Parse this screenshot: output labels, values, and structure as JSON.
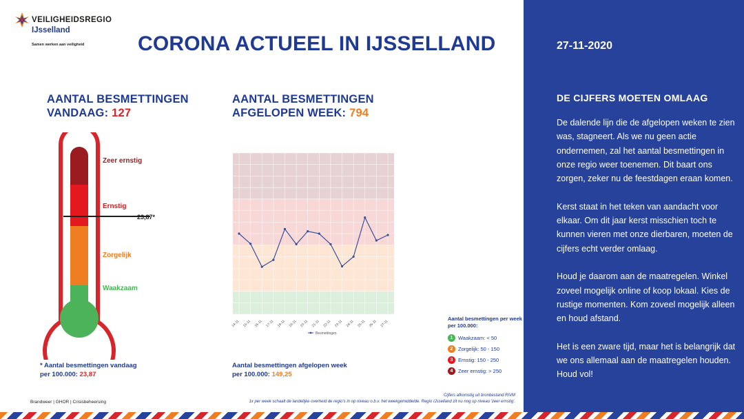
{
  "logo": {
    "line1": "VEILIGHEIDSREGIO",
    "line2": "IJsselland",
    "tagline": "Samen werken aan veiligheid"
  },
  "title": "CORONA ACTUEEL IN IJSSELLAND",
  "today": {
    "label_line1": "AANTAL BESMETTINGEN",
    "label_line2": "VANDAAG:",
    "value": "127"
  },
  "week": {
    "label_line1": "AANTAL BESMETTINGEN",
    "label_line2": "AFGELOPEN WEEK:",
    "value": "794"
  },
  "thermometer": {
    "levels": [
      "Zeer ernstig",
      "Ernstig",
      "Zorgelijk",
      "Waakzaam"
    ],
    "marker_value": "23,87*",
    "colors": {
      "zeer_ernstig": "#9b1c20",
      "ernstig": "#e3191f",
      "zorgelijk": "#ef7d22",
      "waakzaam": "#4cb35a",
      "outline": "#d6262b"
    }
  },
  "chart_data": {
    "type": "line",
    "categories": [
      "14-11",
      "15-11",
      "16-11",
      "17-11",
      "18-11",
      "19-11",
      "20-11",
      "21-11",
      "22-11",
      "23-11",
      "24-11",
      "25-11",
      "26-11",
      "27-11"
    ],
    "series": [
      {
        "name": "Besmettingen",
        "values": [
          175,
          153,
          103,
          118,
          185,
          152,
          180,
          175,
          152,
          104,
          125,
          210,
          160,
          172
        ]
      }
    ],
    "ylim": [
      0,
      350
    ],
    "bands": [
      {
        "from": 0,
        "to": 50,
        "color": "#dcefdc"
      },
      {
        "from": 50,
        "to": 150,
        "color": "#fde6d4"
      },
      {
        "from": 150,
        "to": 250,
        "color": "#f8d7d7"
      },
      {
        "from": 250,
        "to": 350,
        "color": "#e6d2d2"
      }
    ],
    "line_color": "#3a4f9a",
    "legend_label": "Besmettingen"
  },
  "legend": {
    "title": "Aantal besmettingen per week per 100.000:",
    "items": [
      {
        "num": "1",
        "label": "Waakzaam: < 50",
        "color": "#4cb35a"
      },
      {
        "num": "2",
        "label": "Zorgelijk: 50 - 150",
        "color": "#ef7d22"
      },
      {
        "num": "3",
        "label": "Ernstig: 150 - 250",
        "color": "#e3191f"
      },
      {
        "num": "4",
        "label": "Zeer ernstig: > 250",
        "color": "#9b1c20"
      }
    ]
  },
  "notes": {
    "today_line1": "* Aantal besmettingen vandaag",
    "today_line2": "per 100.000:",
    "today_value": "23,87",
    "week_line1": "Aantal besmettingen afgelopen week",
    "week_line2": "per 100.000:",
    "week_value": "149,25"
  },
  "footer": {
    "left": "Brandweer | GHOR | Crisisbeheersing",
    "source1": "Cijfers afkomstig uit bronbestand RIVM",
    "source2": "1x per week schaalt de landelijke overheid de regio's in op niveau o.b.v. het weekgemiddelde. Regio IJsselland zit nu nog op niveau 'zeer ernstig'."
  },
  "panel": {
    "date": "27-11-2020",
    "title": "DE CIJFERS MOETEN OMLAAG",
    "paragraphs": [
      "De dalende lijn die de afgelopen weken te zien was, stagneert. Als we nu geen actie ondernemen, zal het aantal besmettingen in onze regio weer toenemen. Dit baart ons zorgen, zeker nu de feestdagen eraan komen.",
      "Kerst staat in het teken van aandacht voor elkaar. Om dit jaar kerst misschien toch te kunnen vieren met onze dierbaren, moeten de cijfers echt verder omlaag.",
      "Houd je daarom aan de maatregelen. Winkel zoveel mogelijk online of koop lokaal. Kies de rustige momenten. Kom zoveel mogelijk alleen en houd afstand.",
      "Het is een zware tijd, maar het is belangrijk dat we ons allemaal aan de maatregelen houden. Houd vol!"
    ]
  }
}
